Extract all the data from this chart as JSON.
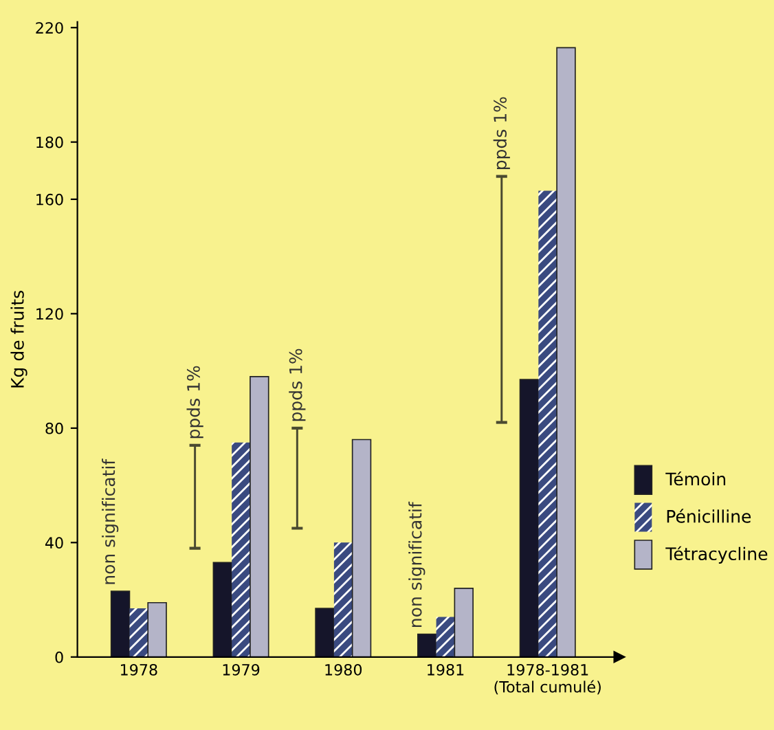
{
  "chart_data": {
    "type": "bar",
    "ylabel": "Kg de fruits",
    "categories": [
      "1978",
      "1979",
      "1980",
      "1981",
      "1978-1981\n(Total cumulé)"
    ],
    "series": [
      {
        "name": "Témoin",
        "color": "#15152a",
        "values": [
          23,
          33,
          17,
          8,
          97
        ]
      },
      {
        "name": "Pénicilline",
        "color": "#3a4a80",
        "values": [
          17,
          75,
          40,
          14,
          163
        ]
      },
      {
        "name": "Tétracycline",
        "color": "#b4b4c8",
        "values": [
          19,
          98,
          76,
          24,
          213
        ]
      },
      {
        "type": "bar",
        "color": "#4a4a30",
        "base": [
          null,
          38,
          45,
          null,
          82
        ],
        "values": [
          null,
          36,
          35,
          null,
          86
        ]
      }
    ],
    "ylim": [
      0,
      222
    ],
    "yticks": [
      0,
      40,
      80,
      120,
      160,
      180,
      220
    ],
    "legend": "right",
    "annotations": [
      "non significatif",
      "ppds 1%",
      "ppds 1%",
      "non significatif",
      "ppds 1%"
    ]
  }
}
